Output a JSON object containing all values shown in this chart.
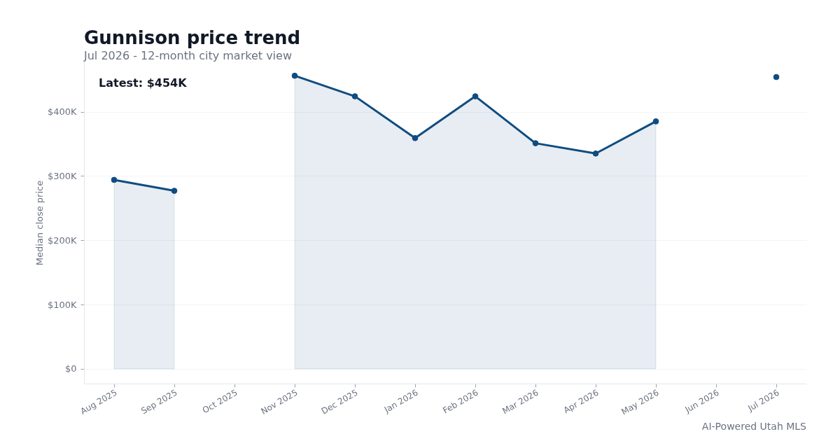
{
  "chart_data": {
    "type": "area",
    "title": "Gunnison price trend",
    "subtitle": "Jul 2026 - 12-month city market view",
    "ylabel": "Median close price",
    "categories": [
      "Aug 2025",
      "Sep 2025",
      "Oct 2025",
      "Nov 2025",
      "Dec 2025",
      "Jan 2026",
      "Feb 2026",
      "Mar 2026",
      "Apr 2026",
      "May 2026",
      "Jun 2026",
      "Jul 2026"
    ],
    "series": [
      {
        "color": "#0f4c81",
        "values": [
          294000,
          277000,
          null,
          456000,
          424000,
          359000,
          424000,
          351000,
          335000,
          385000,
          null,
          null
        ]
      },
      {
        "type": "scatter",
        "color": "#0f4c81",
        "values": [
          null,
          null,
          null,
          null,
          null,
          null,
          null,
          null,
          null,
          null,
          null,
          454000
        ]
      }
    ],
    "ylim": [
      -23000,
      478000
    ],
    "yticks": [
      {
        "value": 0,
        "label": "$0"
      },
      {
        "value": 100000,
        "label": "$100K"
      },
      {
        "value": 200000,
        "label": "$200K"
      },
      {
        "value": 300000,
        "label": "$300K"
      },
      {
        "value": 400000,
        "label": "$400K"
      }
    ],
    "grid": "y",
    "marker": "circle",
    "line_style": "solid",
    "annotations": [
      "Latest: $454K",
      "AI-Powered Utah MLS"
    ]
  }
}
